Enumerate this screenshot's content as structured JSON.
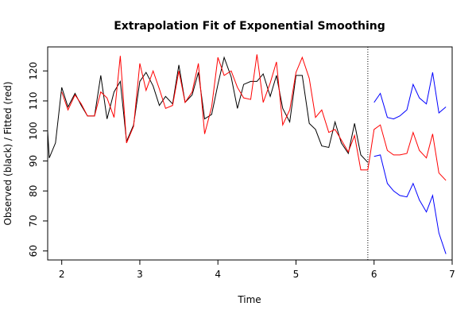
{
  "chart_data": {
    "type": "line",
    "title": "Extrapolation Fit of Exponential Smoothing",
    "xlabel": "Time",
    "ylabel": "Observed (black) / Fitted (red)",
    "xlim": [
      1.82,
      7.0
    ],
    "ylim": [
      57,
      128
    ],
    "x_ticks": [
      2,
      3,
      4,
      5,
      6,
      7
    ],
    "y_ticks": [
      60,
      70,
      80,
      90,
      100,
      110,
      120
    ],
    "forecast_start": 5.92,
    "grid": false,
    "legend": "none",
    "series": [
      {
        "color": "#000000",
        "x": [
          1.82,
          1.84,
          1.92,
          2.0,
          2.08,
          2.17,
          2.25,
          2.33,
          2.42,
          2.5,
          2.58,
          2.67,
          2.75,
          2.83,
          2.92,
          3.0,
          3.08,
          3.17,
          3.25,
          3.33,
          3.42,
          3.5,
          3.58,
          3.67,
          3.75,
          3.83,
          3.92,
          4.0,
          4.08,
          4.17,
          4.25,
          4.33,
          4.42,
          4.5,
          4.58,
          4.67,
          4.75,
          4.83,
          4.92,
          5.0,
          5.08,
          5.17,
          5.25,
          5.33,
          5.42,
          5.5,
          5.58,
          5.67,
          5.75,
          5.83,
          5.92
        ],
        "values": [
          100,
          91,
          96,
          114.5,
          108,
          112.5,
          108.5,
          105,
          105,
          118.5,
          104,
          113,
          116.5,
          96.5,
          102,
          116.5,
          119.5,
          115,
          108.5,
          111.5,
          109,
          122,
          109.5,
          112,
          119.5,
          104,
          105.5,
          115.5,
          124.5,
          118,
          107.5,
          115.5,
          116.5,
          116.5,
          119,
          111.5,
          118.5,
          107.5,
          103,
          118.5,
          118.5,
          102.5,
          100.5,
          95,
          94.5,
          103,
          96,
          92.5,
          102.5,
          92,
          89.5
        ]
      },
      {
        "color": "#ff0000",
        "x": [
          2.0,
          2.08,
          2.17,
          2.25,
          2.33,
          2.42,
          2.5,
          2.58,
          2.67,
          2.75,
          2.83,
          2.92,
          3.0,
          3.08,
          3.17,
          3.25,
          3.33,
          3.42,
          3.5,
          3.58,
          3.67,
          3.75,
          3.83,
          3.92,
          4.0,
          4.08,
          4.17,
          4.25,
          4.33,
          4.42,
          4.5,
          4.58,
          4.67,
          4.75,
          4.83,
          4.92,
          5.0,
          5.08,
          5.17,
          5.25,
          5.33,
          5.42,
          5.5,
          5.58,
          5.67,
          5.75,
          5.83,
          5.92,
          6.0,
          6.08,
          6.17,
          6.25,
          6.33,
          6.42,
          6.5,
          6.58,
          6.67,
          6.75,
          6.83,
          6.92
        ],
        "values": [
          113,
          107,
          112,
          109,
          105,
          105,
          113,
          111,
          104.5,
          125,
          96,
          101.5,
          122.5,
          113.5,
          120,
          114,
          107.5,
          108.5,
          120,
          109.5,
          113,
          122.5,
          99,
          108,
          124.5,
          118.5,
          120,
          114.5,
          111,
          110.5,
          125.5,
          109.5,
          116,
          123,
          102,
          107,
          119.5,
          124.5,
          117.5,
          104.5,
          107,
          99.5,
          100.5,
          97,
          93,
          98.5,
          87,
          87,
          100.5,
          102,
          93.5,
          92,
          92,
          92.5,
          99.5,
          93.5,
          91,
          99,
          86,
          83.5
        ]
      },
      {
        "color": "#0000ff",
        "x": [
          6.0,
          6.08,
          6.17,
          6.25,
          6.33,
          6.42,
          6.5,
          6.58,
          6.67,
          6.75,
          6.83,
          6.92
        ],
        "values": [
          109.5,
          112.5,
          104.5,
          104,
          105,
          107,
          115.5,
          111,
          109,
          119.5,
          106,
          108
        ]
      },
      {
        "color": "#0000ff",
        "x": [
          6.0,
          6.08,
          6.17,
          6.25,
          6.33,
          6.42,
          6.5,
          6.58,
          6.67,
          6.75,
          6.83,
          6.92
        ],
        "values": [
          91.5,
          92,
          82.5,
          80,
          78.5,
          78,
          82.5,
          77,
          73,
          78.5,
          66,
          59
        ]
      }
    ]
  }
}
